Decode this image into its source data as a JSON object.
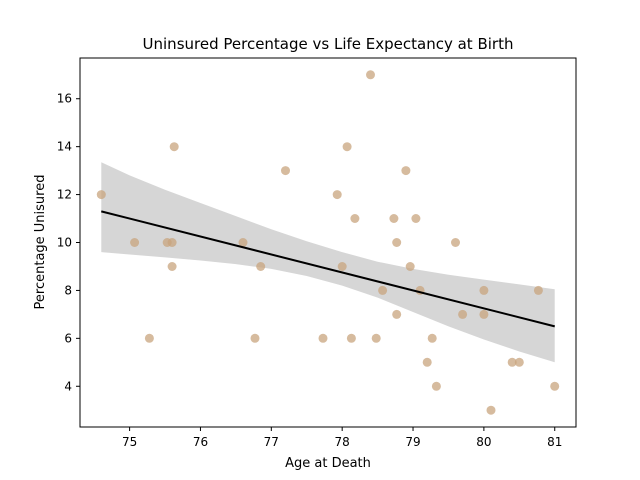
{
  "chart_data": {
    "type": "scatter",
    "title": "Uninsured Percentage vs Life Expectancy at Birth",
    "xlabel": "Age at Death",
    "ylabel": "Percentage Unisured",
    "xlim": [
      74.3,
      81.3
    ],
    "ylim": [
      2.3,
      17.7
    ],
    "xticks": [
      75,
      76,
      77,
      78,
      79,
      80,
      81
    ],
    "yticks": [
      4,
      6,
      8,
      10,
      12,
      14,
      16
    ],
    "grid": false,
    "legend": "none",
    "colors": {
      "points": "#c8a47e",
      "regression_line": "#000000",
      "confidence_band": "#d6d6d6",
      "axes": "#000000"
    },
    "points": [
      {
        "x": 74.6,
        "y": 12
      },
      {
        "x": 75.07,
        "y": 10
      },
      {
        "x": 75.28,
        "y": 6
      },
      {
        "x": 75.53,
        "y": 10
      },
      {
        "x": 75.6,
        "y": 10
      },
      {
        "x": 75.6,
        "y": 9
      },
      {
        "x": 75.63,
        "y": 14
      },
      {
        "x": 76.6,
        "y": 10
      },
      {
        "x": 76.77,
        "y": 6
      },
      {
        "x": 76.85,
        "y": 9
      },
      {
        "x": 77.2,
        "y": 13
      },
      {
        "x": 77.73,
        "y": 6
      },
      {
        "x": 77.93,
        "y": 12
      },
      {
        "x": 78.0,
        "y": 9
      },
      {
        "x": 78.07,
        "y": 14
      },
      {
        "x": 78.13,
        "y": 6
      },
      {
        "x": 78.18,
        "y": 11
      },
      {
        "x": 78.4,
        "y": 17
      },
      {
        "x": 78.48,
        "y": 6
      },
      {
        "x": 78.57,
        "y": 8
      },
      {
        "x": 78.73,
        "y": 11
      },
      {
        "x": 78.77,
        "y": 10
      },
      {
        "x": 78.77,
        "y": 7
      },
      {
        "x": 78.9,
        "y": 13
      },
      {
        "x": 78.96,
        "y": 9
      },
      {
        "x": 79.04,
        "y": 11
      },
      {
        "x": 79.1,
        "y": 8
      },
      {
        "x": 79.2,
        "y": 5
      },
      {
        "x": 79.27,
        "y": 6
      },
      {
        "x": 79.33,
        "y": 4
      },
      {
        "x": 79.6,
        "y": 10
      },
      {
        "x": 79.7,
        "y": 7
      },
      {
        "x": 80.0,
        "y": 8
      },
      {
        "x": 80.0,
        "y": 7
      },
      {
        "x": 80.1,
        "y": 3
      },
      {
        "x": 80.4,
        "y": 5
      },
      {
        "x": 80.5,
        "y": 5
      },
      {
        "x": 80.77,
        "y": 8
      },
      {
        "x": 81.0,
        "y": 4
      }
    ],
    "regression": {
      "x": [
        74.6,
        81.0
      ],
      "y": [
        11.3,
        6.5
      ]
    },
    "confidence_band": {
      "x": [
        74.6,
        75.0,
        75.5,
        76.0,
        76.5,
        77.0,
        77.5,
        78.0,
        78.5,
        79.0,
        79.5,
        80.0,
        80.5,
        81.0
      ],
      "upper": [
        13.35,
        12.8,
        12.2,
        11.65,
        11.1,
        10.55,
        10.05,
        9.6,
        9.2,
        8.9,
        8.65,
        8.45,
        8.25,
        8.05
      ],
      "lower": [
        9.6,
        9.5,
        9.38,
        9.25,
        9.1,
        8.9,
        8.6,
        8.2,
        7.7,
        7.1,
        6.5,
        5.95,
        5.45,
        5.0
      ]
    }
  }
}
